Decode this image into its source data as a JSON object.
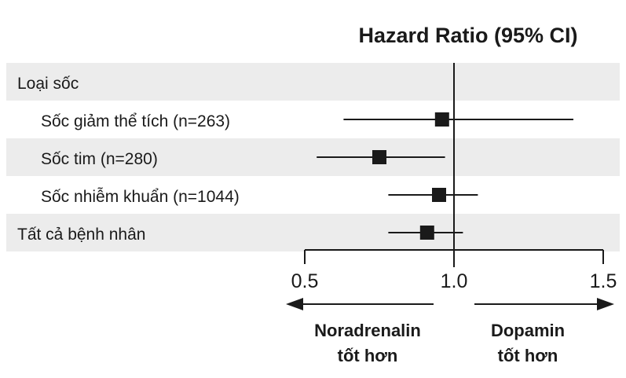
{
  "chart_data": {
    "type": "forest",
    "title": "Hazard Ratio (95% CI)",
    "xlim": [
      0.5,
      1.5
    ],
    "ticks": [
      0.5,
      1.0,
      1.5
    ],
    "tick_labels": [
      "0.5",
      "1.0",
      "1.5"
    ],
    "reference_line": 1.0,
    "grid": false,
    "rows": [
      {
        "label": "Loại sốc",
        "header": true,
        "indent": false,
        "shaded": true
      },
      {
        "label": "Sốc giảm thể tích (n=263)",
        "indent": true,
        "shaded": false,
        "hr": 0.96,
        "ci_low": 0.63,
        "ci_high": 1.4
      },
      {
        "label": "Sốc tim (n=280)",
        "indent": true,
        "shaded": true,
        "hr": 0.75,
        "ci_low": 0.54,
        "ci_high": 0.97
      },
      {
        "label": "Sốc nhiễm khuẩn (n=1044)",
        "indent": true,
        "shaded": false,
        "hr": 0.95,
        "ci_low": 0.78,
        "ci_high": 1.08
      },
      {
        "label": "Tất cả bệnh nhân",
        "indent": false,
        "shaded": true,
        "hr": 0.91,
        "ci_low": 0.78,
        "ci_high": 1.03
      }
    ],
    "favors_left": [
      "Noradrenalin",
      "tốt hơn"
    ],
    "favors_right": [
      "Dopamin",
      "tốt hơn"
    ]
  },
  "colors": {
    "shade": "#ececec",
    "ink": "#1a1a1a"
  }
}
